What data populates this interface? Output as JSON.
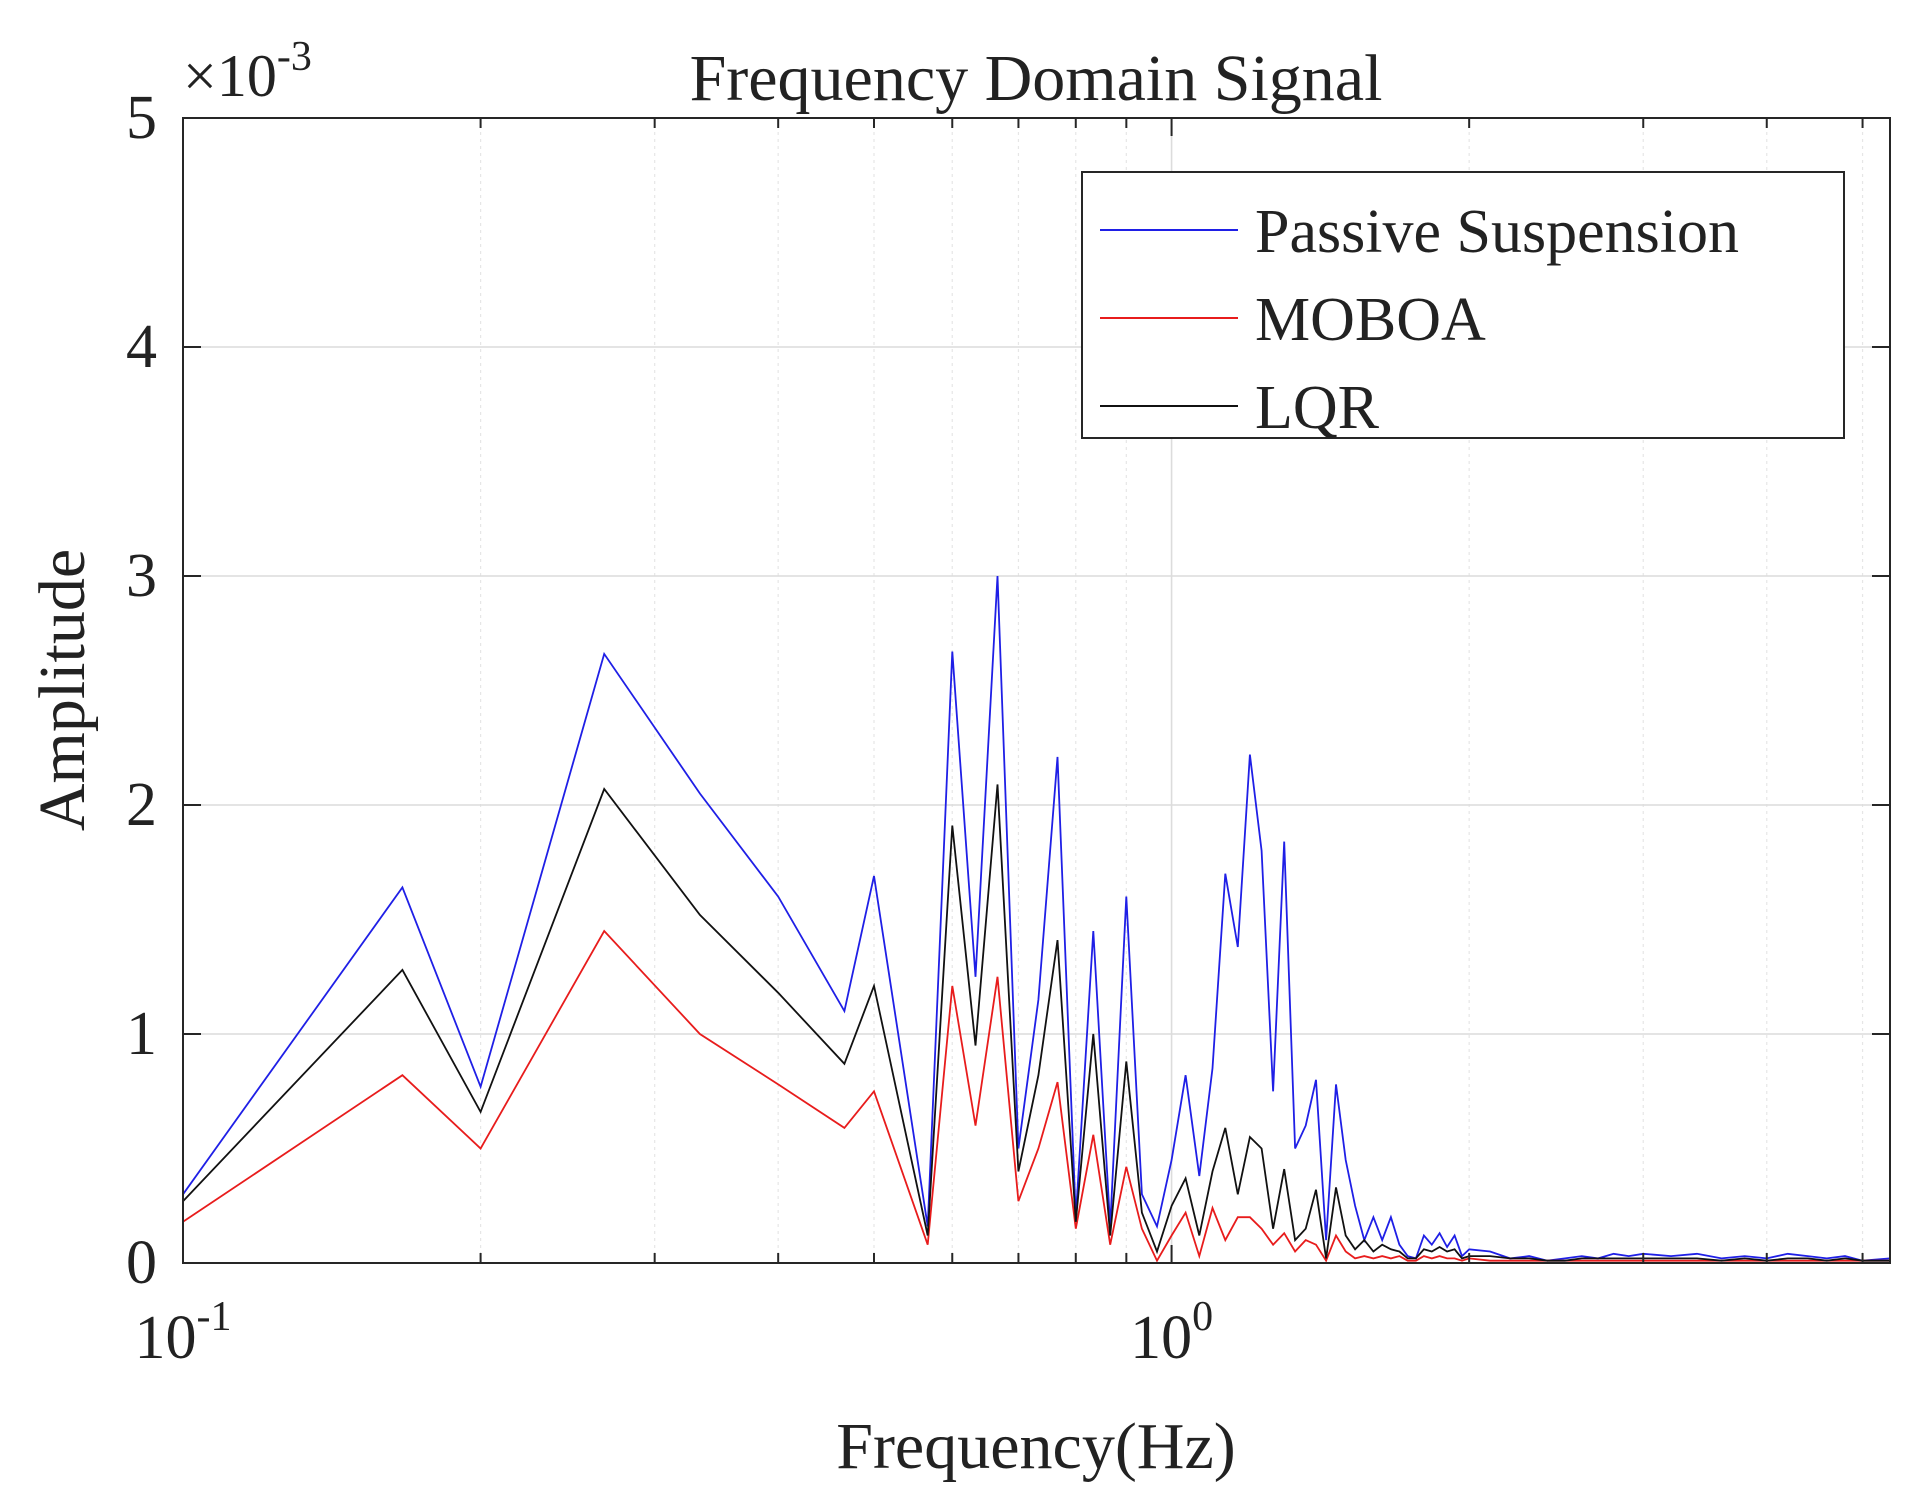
{
  "chart_data": {
    "type": "line",
    "title": "Frequency Domain Signal",
    "xlabel": "Frequency(Hz)",
    "ylabel": "Amplitude",
    "xscale": "log",
    "xlim": [
      0.1,
      5.33
    ],
    "ylim": [
      0,
      5
    ],
    "y_multiplier_base": "×10",
    "y_multiplier_exp": "-3",
    "x_major_ticks": [
      {
        "value": 0.1,
        "base": "10",
        "exp": "-1"
      },
      {
        "value": 1,
        "base": "10",
        "exp": "0"
      }
    ],
    "y_ticks": [
      0,
      1,
      2,
      3,
      4,
      5
    ],
    "y_tick_labels": [
      "0",
      "1",
      "2",
      "3",
      "4",
      "5"
    ],
    "grid": true,
    "legend_position": "top-right",
    "series": [
      {
        "name": "Passive Suspension",
        "color": "#1f1fe6",
        "x": [
          0.1,
          0.1667,
          0.2,
          0.2667,
          0.3333,
          0.4,
          0.4667,
          0.5,
          0.5667,
          0.6,
          0.6333,
          0.6667,
          0.7,
          0.7333,
          0.7667,
          0.8,
          0.8333,
          0.8667,
          0.9,
          0.9333,
          0.9667,
          1.0,
          1.0333,
          1.0667,
          1.1,
          1.1333,
          1.1667,
          1.2,
          1.2333,
          1.2667,
          1.3,
          1.3333,
          1.3667,
          1.4,
          1.4333,
          1.4667,
          1.5,
          1.5333,
          1.5667,
          1.6,
          1.6333,
          1.6667,
          1.7,
          1.7333,
          1.7667,
          1.8,
          1.8333,
          1.8667,
          1.9,
          1.9333,
          1.9667,
          2.0,
          2.1,
          2.2,
          2.3,
          2.4,
          2.5,
          2.6,
          2.7,
          2.8,
          2.9,
          3.0,
          3.2,
          3.4,
          3.6,
          3.8,
          4.0,
          4.2,
          4.4,
          4.6,
          4.8,
          5.0,
          5.33
        ],
        "values": [
          0.3,
          1.64,
          0.77,
          2.66,
          2.05,
          1.6,
          1.1,
          1.69,
          0.16,
          2.67,
          1.25,
          3.0,
          0.5,
          1.15,
          2.21,
          0.2,
          1.45,
          0.16,
          1.6,
          0.3,
          0.16,
          0.45,
          0.82,
          0.38,
          0.85,
          1.7,
          1.38,
          2.22,
          1.8,
          0.75,
          1.84,
          0.5,
          0.6,
          0.8,
          0.1,
          0.78,
          0.45,
          0.25,
          0.1,
          0.2,
          0.1,
          0.2,
          0.08,
          0.03,
          0.02,
          0.12,
          0.08,
          0.13,
          0.07,
          0.12,
          0.03,
          0.06,
          0.05,
          0.02,
          0.03,
          0.01,
          0.02,
          0.03,
          0.02,
          0.04,
          0.03,
          0.04,
          0.03,
          0.04,
          0.02,
          0.03,
          0.02,
          0.04,
          0.03,
          0.02,
          0.03,
          0.01,
          0.02
        ]
      },
      {
        "name": "MOBOA",
        "color": "#e81c1c",
        "x": [
          0.1,
          0.1667,
          0.2,
          0.2667,
          0.3333,
          0.4,
          0.4667,
          0.5,
          0.5667,
          0.6,
          0.6333,
          0.6667,
          0.7,
          0.7333,
          0.7667,
          0.8,
          0.8333,
          0.8667,
          0.9,
          0.9333,
          0.9667,
          1.0,
          1.0333,
          1.0667,
          1.1,
          1.1333,
          1.1667,
          1.2,
          1.2333,
          1.2667,
          1.3,
          1.3333,
          1.3667,
          1.4,
          1.4333,
          1.4667,
          1.5,
          1.5333,
          1.5667,
          1.6,
          1.6333,
          1.6667,
          1.7,
          1.7333,
          1.7667,
          1.8,
          1.8333,
          1.8667,
          1.9,
          1.9333,
          1.9667,
          2.0,
          2.1,
          2.2,
          2.3,
          2.4,
          2.5,
          2.6,
          2.7,
          2.8,
          2.9,
          3.0,
          3.2,
          3.4,
          3.6,
          3.8,
          4.0,
          4.2,
          4.4,
          4.6,
          4.8,
          5.0,
          5.33
        ],
        "values": [
          0.18,
          0.82,
          0.5,
          1.45,
          1.0,
          0.78,
          0.59,
          0.75,
          0.08,
          1.21,
          0.6,
          1.25,
          0.27,
          0.5,
          0.79,
          0.15,
          0.56,
          0.08,
          0.42,
          0.15,
          0.01,
          0.12,
          0.22,
          0.03,
          0.24,
          0.1,
          0.2,
          0.2,
          0.15,
          0.08,
          0.13,
          0.05,
          0.1,
          0.08,
          0.01,
          0.12,
          0.05,
          0.02,
          0.03,
          0.02,
          0.03,
          0.02,
          0.03,
          0.01,
          0.01,
          0.03,
          0.02,
          0.03,
          0.02,
          0.02,
          0.01,
          0.02,
          0.01,
          0.01,
          0.01,
          0.01,
          0.01,
          0.01,
          0.01,
          0.01,
          0.01,
          0.01,
          0.01,
          0.01,
          0.01,
          0.01,
          0.01,
          0.01,
          0.01,
          0.01,
          0.01,
          0.01,
          0.01
        ]
      },
      {
        "name": "LQR",
        "color": "#111111",
        "x": [
          0.1,
          0.1667,
          0.2,
          0.2667,
          0.3333,
          0.4,
          0.4667,
          0.5,
          0.5667,
          0.6,
          0.6333,
          0.6667,
          0.7,
          0.7333,
          0.7667,
          0.8,
          0.8333,
          0.8667,
          0.9,
          0.9333,
          0.9667,
          1.0,
          1.0333,
          1.0667,
          1.1,
          1.1333,
          1.1667,
          1.2,
          1.2333,
          1.2667,
          1.3,
          1.3333,
          1.3667,
          1.4,
          1.4333,
          1.4667,
          1.5,
          1.5333,
          1.5667,
          1.6,
          1.6333,
          1.6667,
          1.7,
          1.7333,
          1.7667,
          1.8,
          1.8333,
          1.8667,
          1.9,
          1.9333,
          1.9667,
          2.0,
          2.1,
          2.2,
          2.3,
          2.4,
          2.5,
          2.6,
          2.7,
          2.8,
          2.9,
          3.0,
          3.2,
          3.4,
          3.6,
          3.8,
          4.0,
          4.2,
          4.4,
          4.6,
          4.8,
          5.0,
          5.33
        ],
        "values": [
          0.27,
          1.28,
          0.66,
          2.07,
          1.52,
          1.18,
          0.87,
          1.21,
          0.12,
          1.91,
          0.95,
          2.09,
          0.4,
          0.82,
          1.41,
          0.18,
          1.0,
          0.12,
          0.88,
          0.22,
          0.05,
          0.25,
          0.37,
          0.12,
          0.4,
          0.59,
          0.3,
          0.55,
          0.5,
          0.15,
          0.41,
          0.1,
          0.15,
          0.32,
          0.02,
          0.33,
          0.12,
          0.06,
          0.1,
          0.05,
          0.08,
          0.06,
          0.05,
          0.02,
          0.02,
          0.06,
          0.05,
          0.07,
          0.05,
          0.06,
          0.02,
          0.03,
          0.03,
          0.02,
          0.02,
          0.01,
          0.01,
          0.02,
          0.02,
          0.02,
          0.02,
          0.02,
          0.02,
          0.02,
          0.01,
          0.02,
          0.01,
          0.02,
          0.02,
          0.01,
          0.02,
          0.01,
          0.01
        ]
      }
    ]
  }
}
